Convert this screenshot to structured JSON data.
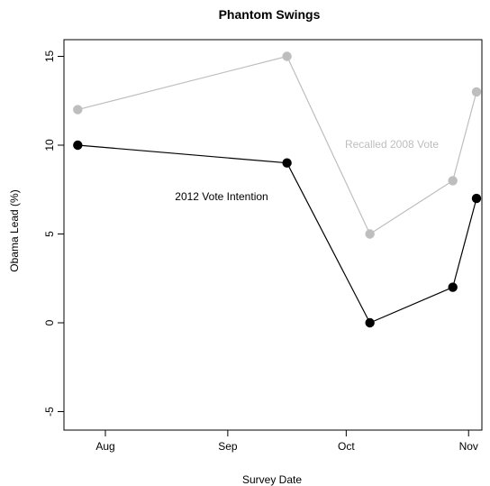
{
  "chart_data": {
    "type": "line",
    "title": "Phantom Swings",
    "xlabel": "Survey Date",
    "ylabel": "Obama Lead (%)",
    "ylim": [
      -5,
      15
    ],
    "y_ticks": [
      -5,
      0,
      5,
      10,
      15
    ],
    "x_ticks": [
      "Aug",
      "Sep",
      "Oct",
      "Nov"
    ],
    "grid": false,
    "legend": "none",
    "series": [
      {
        "name": "Recalled 2008 Vote",
        "color": "#bebebe",
        "points": [
          {
            "date": "Jul 25",
            "value": 12
          },
          {
            "date": "Sep 16",
            "value": 15
          },
          {
            "date": "Oct 7",
            "value": 5
          },
          {
            "date": "Oct 28",
            "value": 8
          },
          {
            "date": "Nov 3",
            "value": 13
          }
        ]
      },
      {
        "name": "2012 Vote Intention",
        "color": "#000000",
        "points": [
          {
            "date": "Jul 25",
            "value": 10
          },
          {
            "date": "Sep 16",
            "value": 9
          },
          {
            "date": "Oct 7",
            "value": 0
          },
          {
            "date": "Oct 28",
            "value": 2
          },
          {
            "date": "Nov 3",
            "value": 7
          }
        ]
      }
    ]
  }
}
